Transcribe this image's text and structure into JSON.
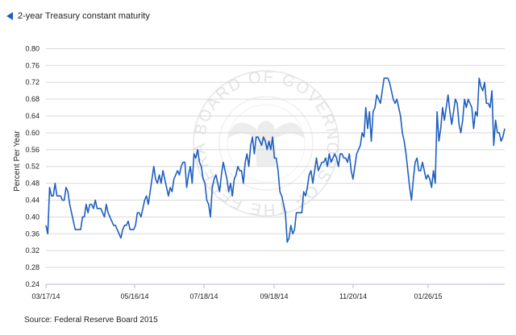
{
  "legend": {
    "label": "2-year Treasury constant maturity"
  },
  "source": "Source: Federal Reserve Board 2015",
  "watermark": {
    "ring_text": "BOARD OF GOVERNORS OF THE FEDERAL RESERVE SYSTEM"
  },
  "colors": {
    "series": "#1f5fbf",
    "grid": "#d9d9d9",
    "axis": "#b8b8e0",
    "watermark": "#e6e6e6"
  },
  "chart_data": {
    "type": "line",
    "xlabel": "",
    "ylabel": "Percent Per Year",
    "ylim": [
      0.24,
      0.82
    ],
    "yticks": [
      "0.24",
      "0.28",
      "0.32",
      "0.36",
      "0.40",
      "0.44",
      "0.48",
      "0.52",
      "0.56",
      "0.60",
      "0.64",
      "0.68",
      "0.72",
      "0.76",
      "0.80"
    ],
    "xticks": [
      "03/17/14",
      "05/16/14",
      "07/18/14",
      "09/18/14",
      "11/20/14",
      "01/26/15"
    ],
    "grid": true,
    "legend_position": "top-left",
    "series": [
      {
        "name": "2-year Treasury constant maturity",
        "values": [
          0.38,
          0.36,
          0.47,
          0.45,
          0.45,
          0.48,
          0.45,
          0.45,
          0.45,
          0.44,
          0.44,
          0.47,
          0.46,
          0.43,
          0.41,
          0.39,
          0.37,
          0.37,
          0.37,
          0.37,
          0.4,
          0.4,
          0.43,
          0.41,
          0.43,
          0.43,
          0.42,
          0.44,
          0.42,
          0.42,
          0.42,
          0.41,
          0.4,
          0.43,
          0.41,
          0.4,
          0.39,
          0.38,
          0.38,
          0.37,
          0.36,
          0.35,
          0.37,
          0.38,
          0.38,
          0.39,
          0.37,
          0.37,
          0.37,
          0.38,
          0.41,
          0.41,
          0.4,
          0.42,
          0.44,
          0.45,
          0.43,
          0.46,
          0.49,
          0.52,
          0.49,
          0.48,
          0.5,
          0.48,
          0.51,
          0.49,
          0.47,
          0.45,
          0.47,
          0.46,
          0.49,
          0.5,
          0.51,
          0.5,
          0.52,
          0.53,
          0.53,
          0.47,
          0.5,
          0.52,
          0.48,
          0.55,
          0.54,
          0.56,
          0.53,
          0.52,
          0.49,
          0.48,
          0.44,
          0.43,
          0.4,
          0.47,
          0.49,
          0.5,
          0.48,
          0.46,
          0.5,
          0.53,
          0.51,
          0.49,
          0.46,
          0.48,
          0.45,
          0.49,
          0.5,
          0.52,
          0.51,
          0.51,
          0.48,
          0.53,
          0.55,
          0.52,
          0.57,
          0.59,
          0.55,
          0.59,
          0.59,
          0.58,
          0.57,
          0.59,
          0.58,
          0.56,
          0.58,
          0.56,
          0.59,
          0.54,
          0.54,
          0.51,
          0.46,
          0.45,
          0.43,
          0.41,
          0.34,
          0.35,
          0.38,
          0.36,
          0.37,
          0.41,
          0.41,
          0.41,
          0.41,
          0.46,
          0.45,
          0.47,
          0.5,
          0.51,
          0.48,
          0.51,
          0.54,
          0.51,
          0.52,
          0.53,
          0.53,
          0.54,
          0.52,
          0.55,
          0.53,
          0.54,
          0.55,
          0.54,
          0.52,
          0.55,
          0.55,
          0.54,
          0.54,
          0.53,
          0.55,
          0.51,
          0.49,
          0.52,
          0.55,
          0.56,
          0.57,
          0.6,
          0.59,
          0.66,
          0.61,
          0.65,
          0.58,
          0.65,
          0.66,
          0.69,
          0.68,
          0.67,
          0.7,
          0.73,
          0.73,
          0.73,
          0.72,
          0.7,
          0.68,
          0.67,
          0.68,
          0.66,
          0.64,
          0.6,
          0.58,
          0.55,
          0.51,
          0.47,
          0.44,
          0.49,
          0.53,
          0.54,
          0.51,
          0.51,
          0.53,
          0.51,
          0.49,
          0.5,
          0.49,
          0.47,
          0.51,
          0.48,
          0.65,
          0.58,
          0.61,
          0.66,
          0.63,
          0.66,
          0.69,
          0.65,
          0.62,
          0.65,
          0.68,
          0.67,
          0.62,
          0.6,
          0.63,
          0.68,
          0.66,
          0.68,
          0.67,
          0.66,
          0.61,
          0.65,
          0.64,
          0.73,
          0.71,
          0.7,
          0.72,
          0.67,
          0.67,
          0.66,
          0.7,
          0.57,
          0.63,
          0.6,
          0.6,
          0.58,
          0.59,
          0.61
        ]
      }
    ]
  }
}
